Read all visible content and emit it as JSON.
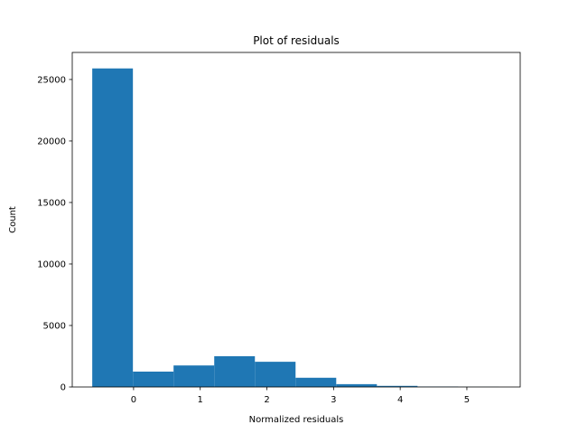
{
  "chart_data": {
    "type": "bar",
    "title": "Plot of residuals",
    "xlabel": "Normalized residuals",
    "ylabel": "Count",
    "xlim": [
      -0.92,
      5.8
    ],
    "ylim": [
      0,
      27200
    ],
    "x_ticks": [
      0,
      1,
      2,
      3,
      4,
      5
    ],
    "y_ticks": [
      0,
      5000,
      10000,
      15000,
      20000,
      25000
    ],
    "bar_color": "#1f77b4",
    "bins": [
      {
        "x0": -0.62,
        "x1": -0.01,
        "value": 25900
      },
      {
        "x0": -0.01,
        "x1": 0.6,
        "value": 1250
      },
      {
        "x0": 0.6,
        "x1": 1.21,
        "value": 1750
      },
      {
        "x0": 1.21,
        "x1": 1.82,
        "value": 2500
      },
      {
        "x0": 1.82,
        "x1": 2.43,
        "value": 2050
      },
      {
        "x0": 2.43,
        "x1": 3.04,
        "value": 750
      },
      {
        "x0": 3.04,
        "x1": 3.65,
        "value": 230
      },
      {
        "x0": 3.65,
        "x1": 4.26,
        "value": 90
      },
      {
        "x0": 4.26,
        "x1": 4.87,
        "value": 35
      },
      {
        "x0": 4.87,
        "x1": 5.48,
        "value": 10
      }
    ],
    "grid": false,
    "legend": "none"
  }
}
